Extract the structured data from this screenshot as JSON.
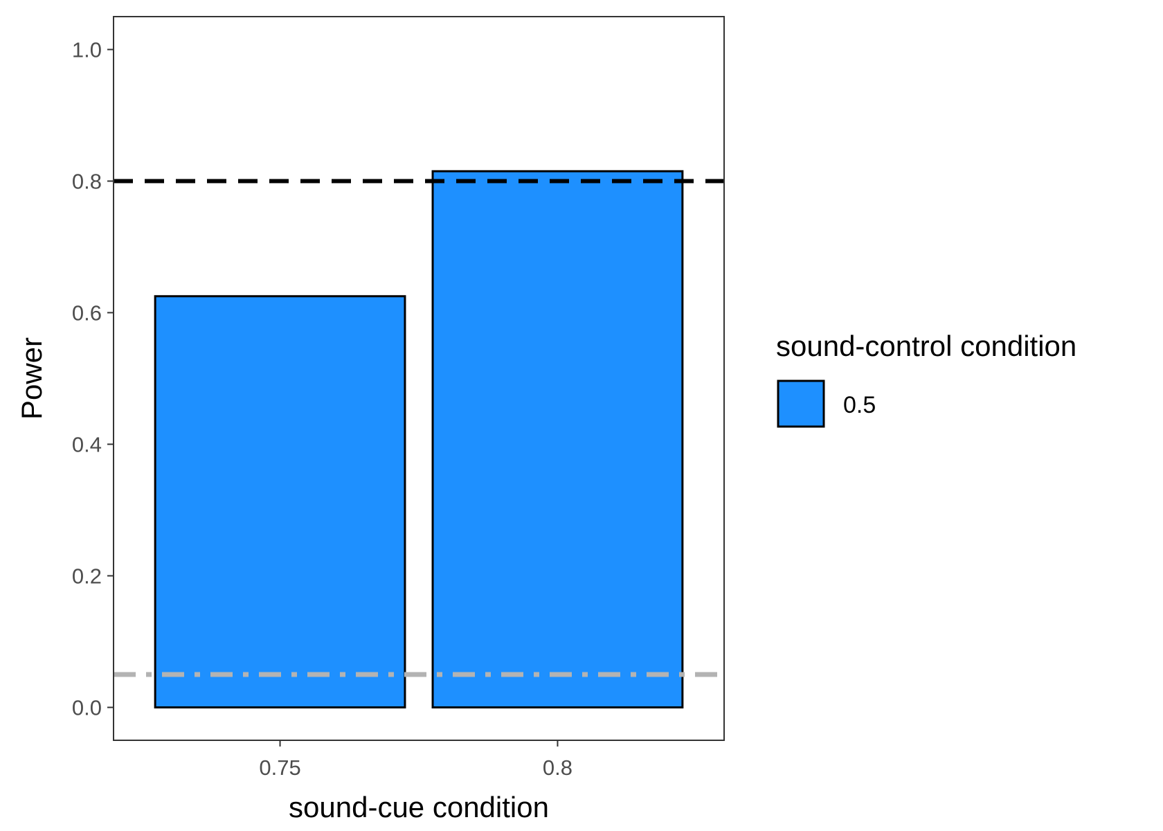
{
  "chart_data": {
    "type": "bar",
    "xlabel": "sound-cue condition",
    "ylabel": "Power",
    "categories": [
      "0.75",
      "0.8"
    ],
    "series": [
      {
        "name": "0.5",
        "values": [
          0.625,
          0.815
        ],
        "color": "#1E90FF"
      }
    ],
    "yticks": [
      "0.0",
      "0.2",
      "0.4",
      "0.6",
      "0.8",
      "1.0"
    ],
    "ylim": [
      -0.05,
      1.05
    ],
    "grid": false,
    "legend": {
      "title": "sound-control condition",
      "position": "right"
    },
    "reference_lines": [
      {
        "y": 0.8,
        "style": "dashed",
        "color": "#000000"
      },
      {
        "y": 0.05,
        "style": "dot-dash",
        "color": "#B3B3B3"
      }
    ]
  }
}
